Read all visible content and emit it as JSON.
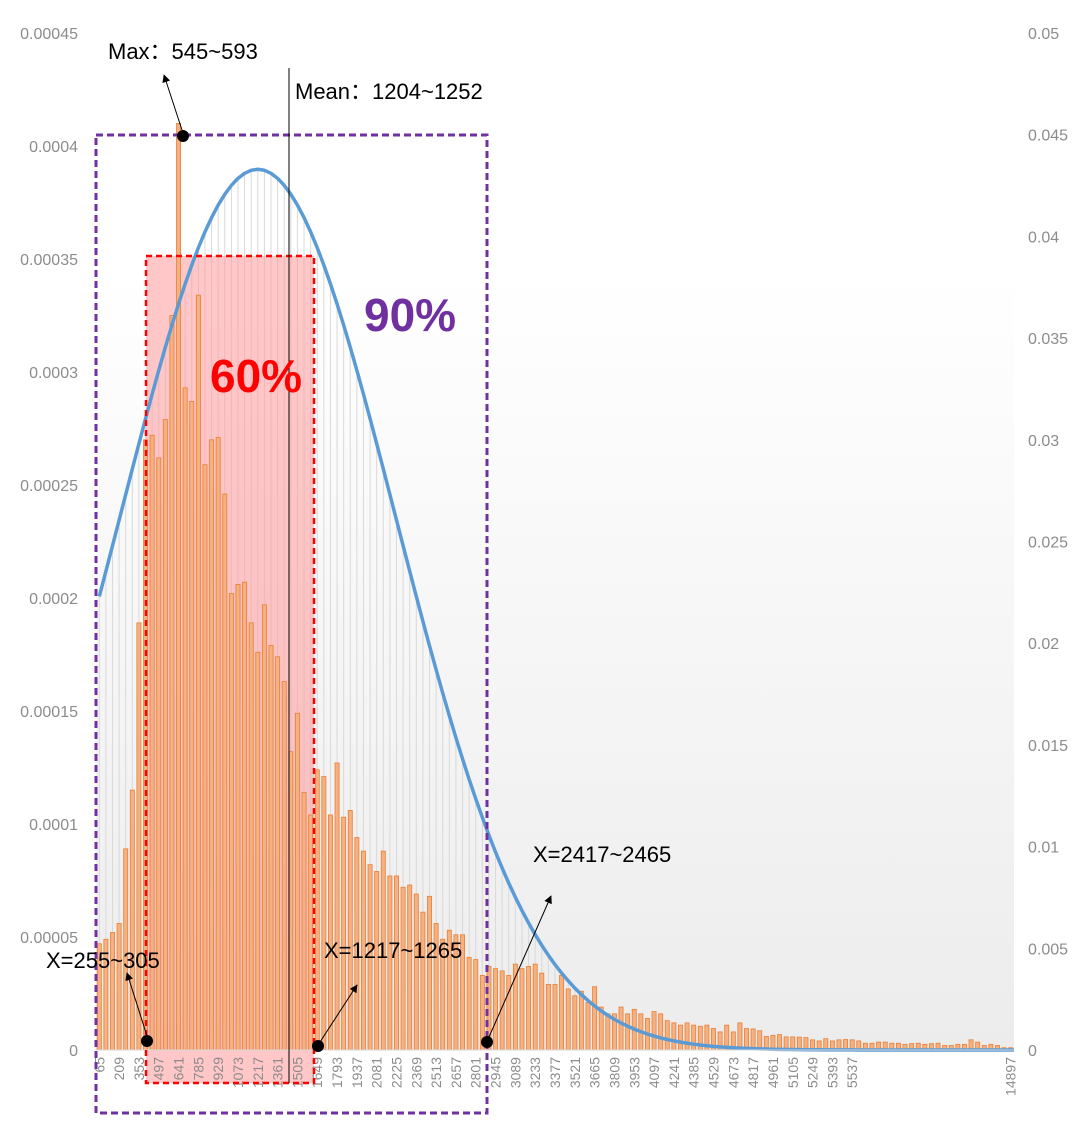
{
  "chart_data": {
    "type": "bar",
    "x_tick_labels": [
      "65",
      "209",
      "353",
      "497",
      "641",
      "785",
      "929",
      "1073",
      "1217",
      "1361",
      "1505",
      "1649",
      "1793",
      "1937",
      "2081",
      "2225",
      "2369",
      "2513",
      "2657",
      "2801",
      "2945",
      "3089",
      "3233",
      "3377",
      "3521",
      "3665",
      "3809",
      "3953",
      "4097",
      "4241",
      "4385",
      "4529",
      "4673",
      "4817",
      "4961",
      "5105",
      "5249",
      "5393",
      "5537",
      "14897"
    ],
    "y_left": {
      "ticks": [
        "0",
        "0.00005",
        "0.0001",
        "0.00015",
        "0.0002",
        "0.00025",
        "0.0003",
        "0.00035",
        "0.0004",
        "0.00045"
      ],
      "min": 0,
      "max": 0.00045
    },
    "y_right": {
      "ticks": [
        "0",
        "0.005",
        "0.01",
        "0.015",
        "0.02",
        "0.025",
        "0.03",
        "0.035",
        "0.04",
        "0.045",
        "0.05"
      ],
      "min": 0,
      "max": 0.05
    },
    "bar_values": [
      4.7e-05,
      4.9e-05,
      5.2e-05,
      5.6e-05,
      8.9e-05,
      0.000115,
      0.000189,
      0.00027,
      0.000272,
      0.000262,
      0.000279,
      0.000325,
      0.00041,
      0.000293,
      0.000287,
      0.000334,
      0.000259,
      0.00027,
      0.000271,
      0.000246,
      0.000202,
      0.000206,
      0.000207,
      0.000189,
      0.000176,
      0.000197,
      0.000179,
      0.000174,
      0.000163,
      0.000132,
      0.000149,
      0.000114,
      0.000104,
      0.000124,
      0.000121,
      0.000104,
      0.000127,
      0.000103,
      0.000106,
      9.4e-05,
      8.8e-05,
      8.2e-05,
      7.9e-05,
      8.8e-05,
      7.7e-05,
      7.7e-05,
      7.2e-05,
      7.3e-05,
      6.9e-05,
      6.1e-05,
      6.8e-05,
      5.6e-05,
      4.9e-05,
      5.3e-05,
      5.1e-05,
      5.1e-05,
      4.1e-05,
      4e-05,
      3.3e-05,
      3.7e-05,
      3.6e-05,
      3.5e-05,
      3.3e-05,
      3.8e-05,
      3.6e-05,
      3.7e-05,
      3.8e-05,
      3.4e-05,
      2.9e-05,
      2.9e-05,
      3.3e-05,
      2.7e-05,
      2.4e-05,
      2.6e-05,
      2.1e-05,
      2.8e-05,
      1.9e-05,
      1.6e-05,
      1.6e-05,
      1.9e-05,
      1.6e-05,
      1.8e-05,
      1.6e-05,
      1.4e-05,
      1.7e-05,
      1.6e-05,
      1.3e-05,
      1.2e-05,
      1.1e-05,
      1.2e-05,
      1.1e-05,
      1.05e-05,
      1.1e-05,
      9.5e-06,
      8e-06,
      1.1e-05,
      8e-06,
      1.2e-05,
      9.5e-06,
      9.3e-06,
      8.5e-06,
      6e-06,
      6.5e-06,
      6.8e-06,
      5.8e-06,
      5.8e-06,
      5.7e-06,
      5.5e-06,
      4.5e-06,
      4e-06,
      5e-06,
      4e-06,
      4.5e-06,
      4.6e-06,
      4.5e-06,
      4e-06,
      3e-06,
      3e-06,
      3.5e-06,
      3.5e-06,
      3e-06,
      3e-06,
      2.5e-06,
      2.8e-06,
      3e-06,
      2.5e-06,
      2.8e-06,
      3e-06,
      2e-06,
      2e-06,
      2.5e-06,
      2.5e-06,
      4.5e-06,
      3.5e-06,
      2e-06,
      2.5e-06,
      2e-06,
      1e-06,
      1e-06
    ],
    "curve": {
      "y_at_first_bin": 0.0223,
      "peak": 0.0433,
      "peak_at_x_tick": "1217"
    },
    "regions": [
      {
        "label": "60%",
        "color": "#ff0000",
        "fill": "#ff9999"
      },
      {
        "label": "90%",
        "color": "#7030a0"
      }
    ],
    "annotations": {
      "max": "Max：545~593",
      "mean": "Mean：1204~1252",
      "x_left": "X=255~305",
      "x_mid": "X=1217~1265",
      "x_right": "X=2417~2465"
    },
    "colors": {
      "bar_fill": "#f4b183",
      "bar_stroke": "#ed7d31",
      "curve": "#5b9bd5",
      "grid": "#d9d9d9"
    }
  }
}
